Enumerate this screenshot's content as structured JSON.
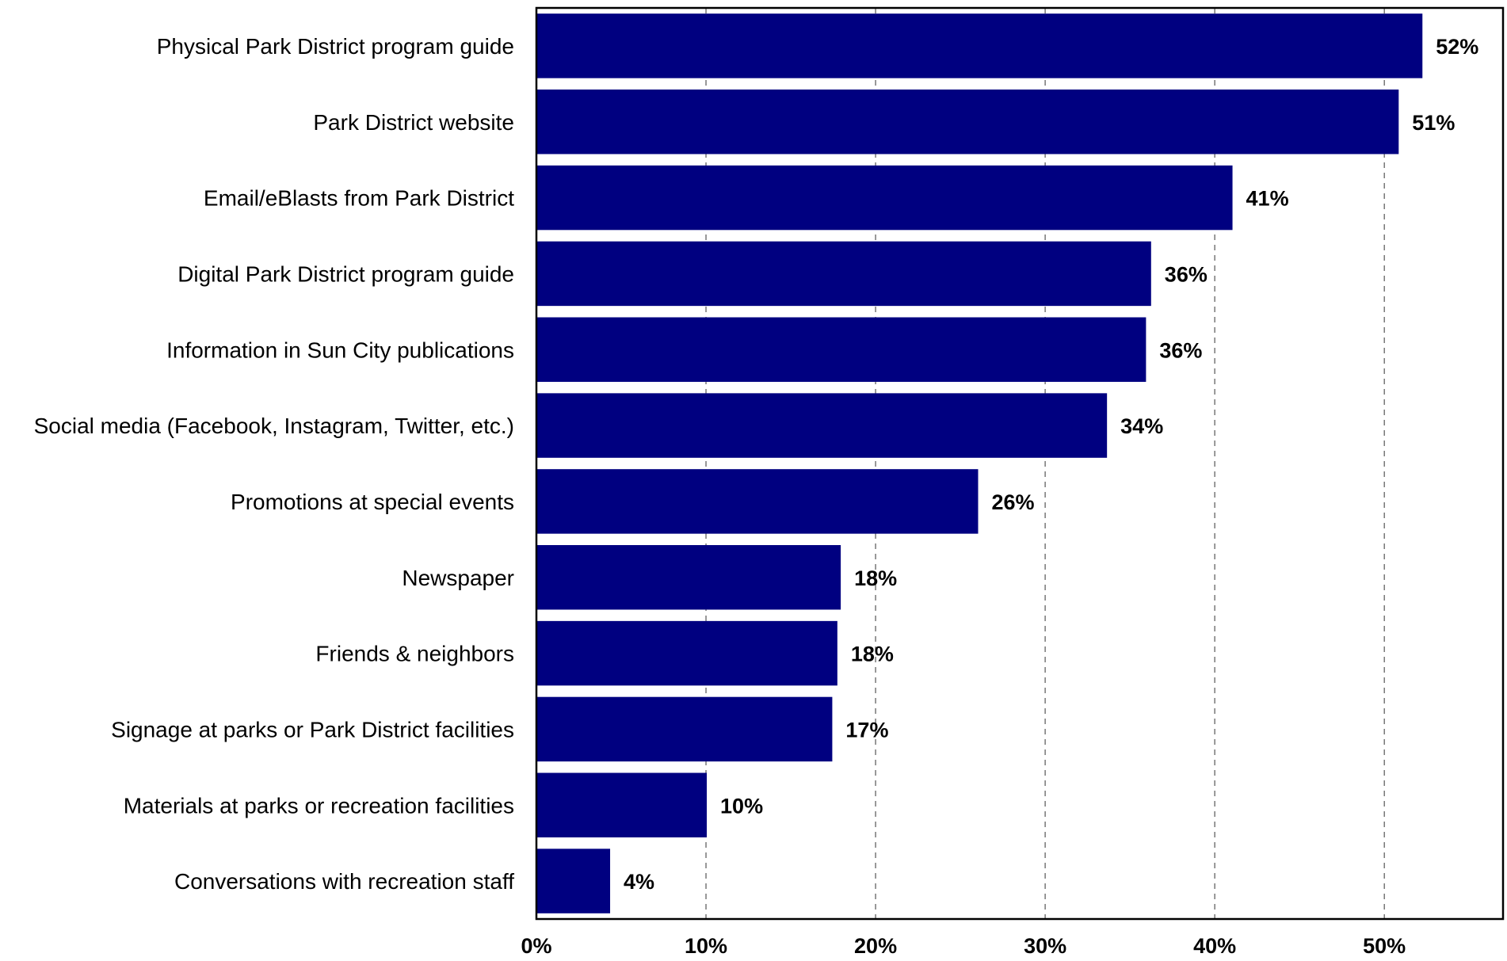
{
  "chart_data": {
    "type": "bar",
    "orientation": "horizontal",
    "categories": [
      "Physical Park District program guide",
      "Park District website",
      "Email/eBlasts from Park District",
      "Digital Park District program guide",
      "Information in Sun City publications",
      "Social media (Facebook, Instagram, Twitter, etc.)",
      "Promotions at special events",
      "Newspaper",
      "Friends & neighbors",
      "Signage at parks or Park District facilities",
      "Materials at parks or recreation facilities",
      "Conversations with recreation staff"
    ],
    "values": [
      52.2,
      50.8,
      41.0,
      36.2,
      35.9,
      33.6,
      26.0,
      17.9,
      17.7,
      17.4,
      10.0,
      4.3
    ],
    "value_labels": [
      "52%",
      "51%",
      "41%",
      "36%",
      "36%",
      "34%",
      "26%",
      "18%",
      "18%",
      "17%",
      "10%",
      "4%"
    ],
    "xlim": [
      0,
      57
    ],
    "xticks": [
      0,
      10,
      20,
      30,
      40,
      50
    ],
    "xtick_labels": [
      "0%",
      "10%",
      "20%",
      "30%",
      "40%",
      "50%"
    ],
    "grid": "vertical dashed",
    "bar_color": "#000080",
    "legend": "none"
  }
}
